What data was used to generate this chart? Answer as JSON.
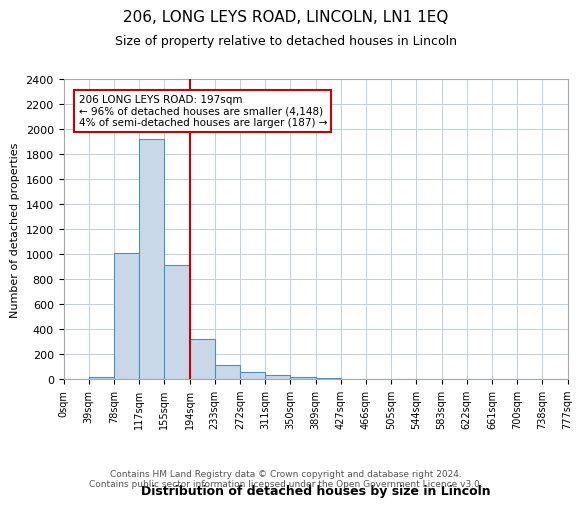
{
  "title_line1": "206, LONG LEYS ROAD, LINCOLN, LN1 1EQ",
  "title_line2": "Size of property relative to detached houses in Lincoln",
  "xlabel": "Distribution of detached houses by size in Lincoln",
  "ylabel": "Number of detached properties",
  "footnote": "Contains HM Land Registry data © Crown copyright and database right 2024.\nContains public sector information licensed under the Open Government Licence v3.0.",
  "bin_labels": [
    "0sqm",
    "39sqm",
    "78sqm",
    "117sqm",
    "155sqm",
    "194sqm",
    "233sqm",
    "272sqm",
    "311sqm",
    "350sqm",
    "389sqm",
    "427sqm",
    "466sqm",
    "505sqm",
    "544sqm",
    "583sqm",
    "622sqm",
    "661sqm",
    "700sqm",
    "738sqm",
    "777sqm"
  ],
  "bar_heights": [
    0,
    20,
    1010,
    1920,
    910,
    320,
    110,
    55,
    30,
    20,
    10,
    0,
    0,
    0,
    0,
    0,
    0,
    0,
    0,
    0,
    0
  ],
  "bar_color": "#c8d8e8",
  "bar_edge_color": "#4a90c4",
  "red_line_x": 5,
  "red_line_color": "#cc0000",
  "annotation_text": "206 LONG LEYS ROAD: 197sqm\n← 96% of detached houses are smaller (4,148)\n4% of semi-detached houses are larger (187) →",
  "annotation_box_color": "#ffffff",
  "annotation_box_edge_color": "#cc0000",
  "ylim": [
    0,
    2400
  ],
  "yticks": [
    0,
    200,
    400,
    600,
    800,
    1000,
    1200,
    1400,
    1600,
    1800,
    2000,
    2200,
    2400
  ],
  "background_color": "#ffffff",
  "grid_color": "#c0d0e0"
}
